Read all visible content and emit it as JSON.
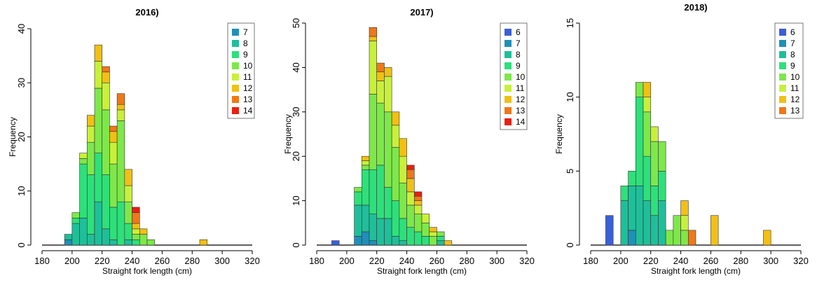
{
  "chart_data": [
    {
      "type": "bar",
      "stacked": true,
      "title": "2016)",
      "xlabel": "Straight fork length (cm)",
      "ylabel": "Frequency",
      "xlim": [
        180,
        320
      ],
      "ylim": [
        0,
        40
      ],
      "xticks": [
        "180",
        "200",
        "220",
        "240",
        "260",
        "280",
        "300",
        "320"
      ],
      "yticks": [
        "0",
        "10",
        "20",
        "30",
        "40"
      ],
      "bin_width": 5,
      "legend_position": "top-right",
      "legend_title": "",
      "ages": [
        "7",
        "8",
        "9",
        "10",
        "11",
        "12",
        "13",
        "14"
      ],
      "colors": {
        "6": "#3b5fd6",
        "7": "#1f90b8",
        "8": "#1fbf9a",
        "9": "#2ee07a",
        "10": "#7ee84a",
        "11": "#c8f03a",
        "12": "#f2c014",
        "13": "#f07818",
        "14": "#e82010"
      },
      "bins": [
        {
          "x": 195,
          "counts": {
            "7": 1,
            "8": 1
          }
        },
        {
          "x": 200,
          "counts": {
            "8": 4,
            "9": 1,
            "10": 1
          }
        },
        {
          "x": 205,
          "counts": {
            "8": 5,
            "9": 10,
            "10": 1,
            "11": 1
          }
        },
        {
          "x": 210,
          "counts": {
            "8": 2,
            "9": 11,
            "10": 6,
            "11": 3,
            "12": 2
          }
        },
        {
          "x": 215,
          "counts": {
            "8": 8,
            "9": 9,
            "10": 12,
            "11": 5,
            "12": 3
          }
        },
        {
          "x": 220,
          "counts": {
            "8": 3,
            "9": 10,
            "10": 12,
            "11": 5,
            "12": 2,
            "13": 1
          }
        },
        {
          "x": 225,
          "counts": {
            "8": 1,
            "9": 6,
            "10": 8,
            "11": 4,
            "12": 2,
            "13": 1
          }
        },
        {
          "x": 230,
          "counts": {
            "9": 8,
            "10": 15,
            "11": 2,
            "12": 1,
            "13": 2
          }
        },
        {
          "x": 235,
          "counts": {
            "8": 1,
            "9": 3,
            "10": 4,
            "11": 3,
            "12": 3
          }
        },
        {
          "x": 240,
          "counts": {
            "9": 1,
            "10": 1,
            "11": 1,
            "12": 1,
            "13": 2,
            "14": 1
          }
        },
        {
          "x": 245,
          "counts": {
            "10": 2,
            "12": 1
          }
        },
        {
          "x": 250,
          "counts": {
            "10": 1
          }
        },
        {
          "x": 285,
          "counts": {
            "12": 1
          }
        }
      ]
    },
    {
      "type": "bar",
      "stacked": true,
      "title": "2017)",
      "xlabel": "Straight fork length (cm)",
      "ylabel": "Frequency",
      "xlim": [
        180,
        320
      ],
      "ylim": [
        0,
        50
      ],
      "xticks": [
        "180",
        "200",
        "220",
        "240",
        "260",
        "280",
        "300",
        "320"
      ],
      "yticks": [
        "0",
        "10",
        "20",
        "30",
        "40",
        "50"
      ],
      "bin_width": 5,
      "legend_position": "top-right",
      "legend_title": "",
      "ages": [
        "6",
        "7",
        "8",
        "9",
        "10",
        "11",
        "12",
        "13",
        "14"
      ],
      "colors": {
        "6": "#3b5fd6",
        "7": "#1f90b8",
        "8": "#1fbf9a",
        "9": "#2ee07a",
        "10": "#7ee84a",
        "11": "#c8f03a",
        "12": "#f2c014",
        "13": "#f07818",
        "14": "#e82010"
      },
      "bins": [
        {
          "x": 190,
          "counts": {
            "6": 1
          }
        },
        {
          "x": 205,
          "counts": {
            "7": 2,
            "8": 7,
            "9": 3,
            "10": 1
          }
        },
        {
          "x": 210,
          "counts": {
            "7": 3,
            "8": 6,
            "9": 8,
            "10": 1,
            "11": 1,
            "12": 1
          }
        },
        {
          "x": 215,
          "counts": {
            "7": 1,
            "8": 6,
            "9": 10,
            "10": 17,
            "11": 12,
            "12": 1,
            "13": 2
          }
        },
        {
          "x": 220,
          "counts": {
            "8": 6,
            "9": 12,
            "10": 14,
            "11": 5,
            "12": 2,
            "13": 2
          }
        },
        {
          "x": 225,
          "counts": {
            "8": 6,
            "9": 7,
            "10": 17,
            "11": 8,
            "12": 2
          }
        },
        {
          "x": 230,
          "counts": {
            "8": 2,
            "9": 8,
            "10": 12,
            "11": 5,
            "12": 3
          }
        },
        {
          "x": 235,
          "counts": {
            "8": 1,
            "9": 5,
            "10": 8,
            "11": 6,
            "12": 4
          }
        },
        {
          "x": 240,
          "counts": {
            "9": 4,
            "10": 5,
            "11": 3,
            "12": 3,
            "13": 2,
            "14": 1
          }
        },
        {
          "x": 245,
          "counts": {
            "9": 3,
            "10": 4,
            "11": 2,
            "12": 1,
            "13": 1,
            "14": 1
          }
        },
        {
          "x": 250,
          "counts": {
            "9": 2,
            "10": 3,
            "11": 2
          }
        },
        {
          "x": 255,
          "counts": {
            "10": 2,
            "11": 1,
            "12": 1
          }
        },
        {
          "x": 260,
          "counts": {
            "8": 1,
            "9": 1,
            "10": 1
          }
        },
        {
          "x": 265,
          "counts": {
            "12": 1
          }
        }
      ]
    },
    {
      "type": "bar",
      "stacked": true,
      "title": "2018)",
      "xlabel": "Straight fork length (cm)",
      "ylabel": "Frequency",
      "xlim": [
        180,
        320
      ],
      "ylim": [
        0,
        15
      ],
      "xticks": [
        "180",
        "200",
        "220",
        "240",
        "260",
        "280",
        "300",
        "320"
      ],
      "yticks": [
        "0",
        "5",
        "10",
        "15"
      ],
      "bin_width": 5,
      "legend_position": "top-right",
      "legend_title": "",
      "ages": [
        "6",
        "7",
        "8",
        "9",
        "10",
        "11",
        "12",
        "13"
      ],
      "colors": {
        "6": "#3b5fd6",
        "7": "#1f90b8",
        "8": "#1fbf9a",
        "9": "#2ee07a",
        "10": "#7ee84a",
        "11": "#c8f03a",
        "12": "#f2c014",
        "13": "#f07818",
        "14": "#e82010"
      },
      "bins": [
        {
          "x": 190,
          "counts": {
            "6": 2
          }
        },
        {
          "x": 200,
          "counts": {
            "8": 3,
            "9": 1
          }
        },
        {
          "x": 205,
          "counts": {
            "7": 1,
            "8": 3,
            "9": 1
          }
        },
        {
          "x": 210,
          "counts": {
            "8": 4,
            "9": 6,
            "10": 1
          }
        },
        {
          "x": 215,
          "counts": {
            "8": 3,
            "9": 3,
            "10": 3,
            "11": 1,
            "12": 1
          }
        },
        {
          "x": 220,
          "counts": {
            "8": 2,
            "9": 2,
            "10": 3,
            "11": 1
          }
        },
        {
          "x": 225,
          "counts": {
            "8": 3,
            "9": 2,
            "10": 2
          }
        },
        {
          "x": 230,
          "counts": {
            "10": 1
          }
        },
        {
          "x": 235,
          "counts": {
            "10": 2
          }
        },
        {
          "x": 240,
          "counts": {
            "10": 1,
            "11": 1,
            "12": 1
          }
        },
        {
          "x": 245,
          "counts": {
            "13": 1
          }
        },
        {
          "x": 260,
          "counts": {
            "12": 2
          }
        },
        {
          "x": 295,
          "counts": {
            "12": 1
          }
        }
      ]
    }
  ]
}
